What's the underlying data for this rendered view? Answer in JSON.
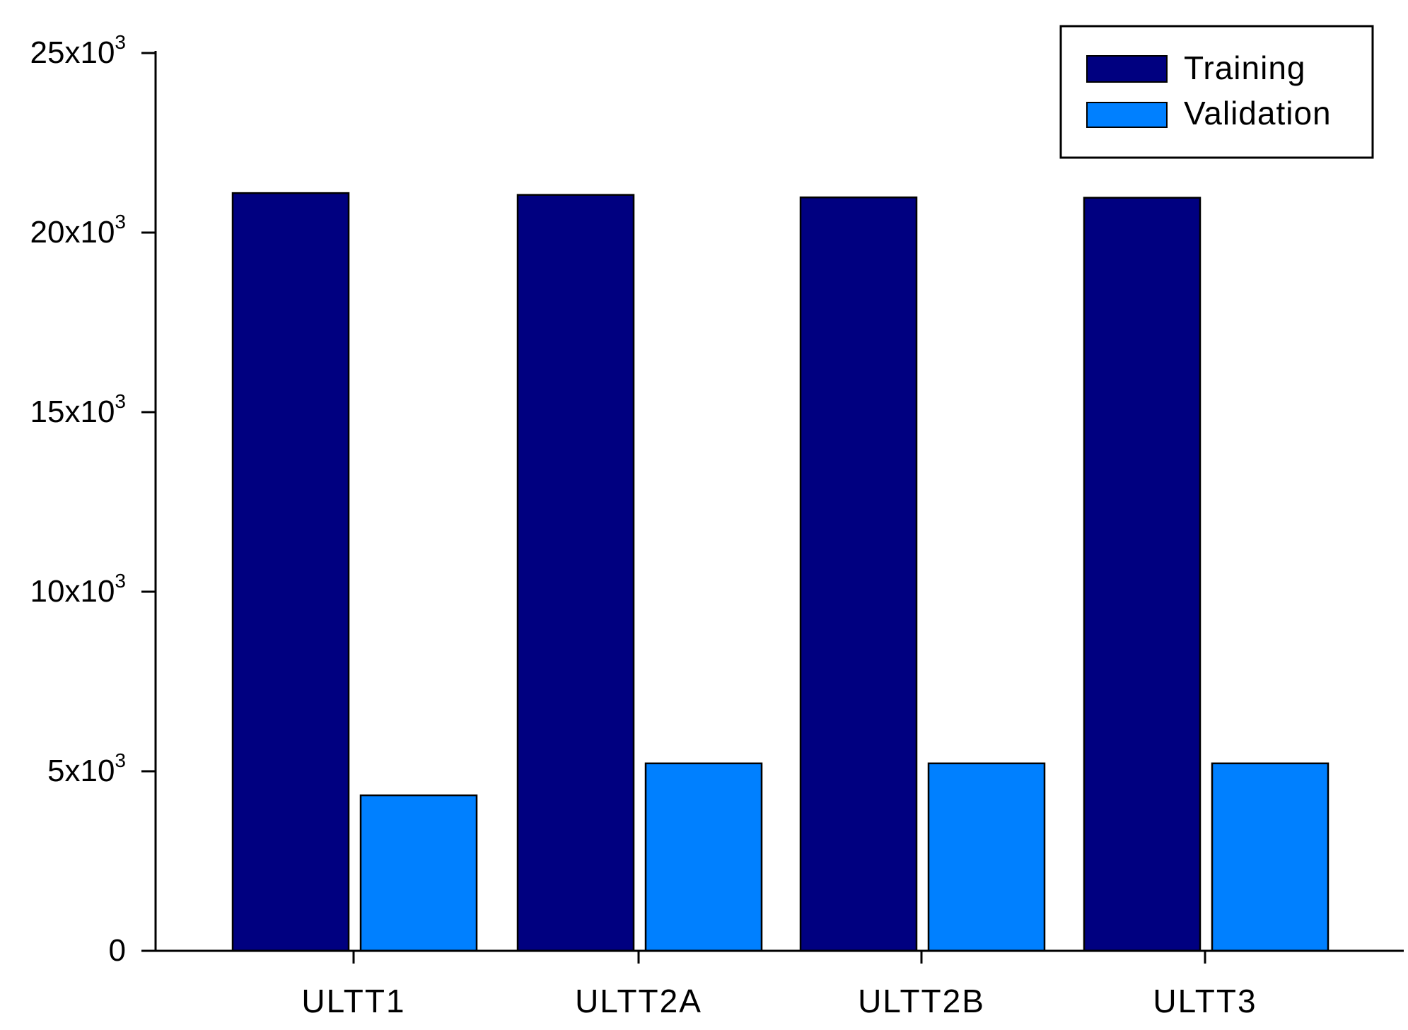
{
  "chart_data": {
    "type": "bar",
    "title": "",
    "xlabel": "",
    "ylabel": "",
    "categories": [
      "ULTT1",
      "ULTT2A",
      "ULTT2B",
      "ULTT3"
    ],
    "series": [
      {
        "name": "Training",
        "color": "#000080",
        "values": [
          21100,
          21050,
          20980,
          20970
        ]
      },
      {
        "name": "Validation",
        "color": "#0080FF",
        "values": [
          4330,
          5220,
          5220,
          5220
        ]
      }
    ],
    "ylim": [
      0,
      25000
    ],
    "yticks": [
      {
        "value": 0,
        "base": "0",
        "exp": ""
      },
      {
        "value": 5000,
        "base": "5x10",
        "exp": "3"
      },
      {
        "value": 10000,
        "base": "10x10",
        "exp": "3"
      },
      {
        "value": 15000,
        "base": "15x10",
        "exp": "3"
      },
      {
        "value": 20000,
        "base": "20x10",
        "exp": "3"
      },
      {
        "value": 25000,
        "base": "25x10",
        "exp": "3"
      }
    ],
    "grid": false,
    "legend_position": "top-right"
  }
}
